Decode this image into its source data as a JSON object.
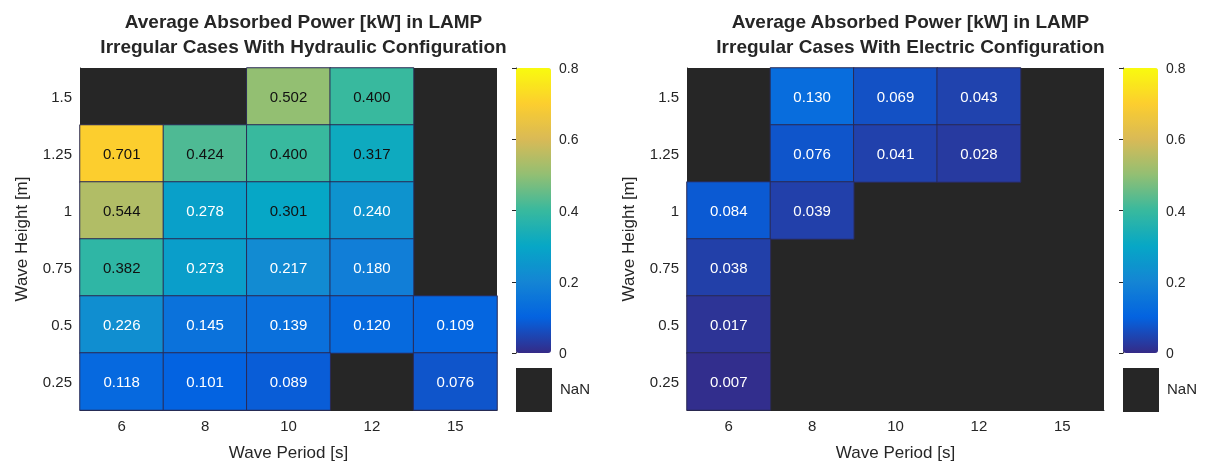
{
  "chart_data": [
    {
      "type": "heatmap",
      "title": "Average Absorbed Power [kW] in LAMP\nIrregular Cases With Hydraulic Configuration",
      "xlabel": "Wave Period [s]",
      "ylabel": "Wave Height [m]",
      "categories": [
        "6",
        "8",
        "10",
        "12",
        "15"
      ],
      "y_categories": [
        "1.5",
        "1.25",
        "1",
        "0.75",
        "0.5",
        "0.25"
      ],
      "cells": [
        [
          null,
          null,
          0.502,
          0.4,
          null
        ],
        [
          0.701,
          0.424,
          0.4,
          0.317,
          null
        ],
        [
          0.544,
          0.278,
          0.301,
          0.24,
          null
        ],
        [
          0.382,
          0.273,
          0.217,
          0.18,
          null
        ],
        [
          0.226,
          0.145,
          0.139,
          0.12,
          0.109
        ],
        [
          0.118,
          0.101,
          0.089,
          null,
          0.076
        ]
      ],
      "cell_labels": [
        [
          null,
          null,
          "0.502",
          "0.400",
          null
        ],
        [
          "0.701",
          "0.424",
          "0.400",
          "0.317",
          null
        ],
        [
          "0.544",
          "0.278",
          "0.301",
          "0.240",
          null
        ],
        [
          "0.382",
          "0.273",
          "0.217",
          "0.180",
          null
        ],
        [
          "0.226",
          "0.145",
          "0.139",
          "0.120",
          "0.109"
        ],
        [
          "0.118",
          "0.101",
          "0.089",
          null,
          "0.076"
        ]
      ],
      "clim": [
        0,
        0.8
      ],
      "cticks": [
        0,
        0.2,
        0.4,
        0.6,
        0.8
      ],
      "annotations": [
        "NaN"
      ]
    },
    {
      "type": "heatmap",
      "title": "Average Absorbed Power [kW] in LAMP\nIrregular Cases With Electric Configuration",
      "xlabel": "Wave Period [s]",
      "ylabel": "Wave Height [m]",
      "categories": [
        "6",
        "8",
        "10",
        "12",
        "15"
      ],
      "y_categories": [
        "1.5",
        "1.25",
        "1",
        "0.75",
        "0.5",
        "0.25"
      ],
      "cells": [
        [
          null,
          0.13,
          0.069,
          0.043,
          null
        ],
        [
          null,
          0.076,
          0.041,
          0.028,
          null
        ],
        [
          0.084,
          0.039,
          null,
          null,
          null
        ],
        [
          0.038,
          null,
          null,
          null,
          null
        ],
        [
          0.017,
          null,
          null,
          null,
          null
        ],
        [
          0.007,
          null,
          null,
          null,
          null
        ]
      ],
      "cell_labels": [
        [
          null,
          "0.130",
          "0.069",
          "0.043",
          null
        ],
        [
          null,
          "0.076",
          "0.041",
          "0.028",
          null
        ],
        [
          "0.084",
          "0.039",
          null,
          null,
          null
        ],
        [
          "0.038",
          null,
          null,
          null,
          null
        ],
        [
          "0.017",
          null,
          null,
          null,
          null
        ],
        [
          "0.007",
          null,
          null,
          null,
          null
        ]
      ],
      "clim": [
        0,
        0.8
      ],
      "cticks": [
        0,
        0.2,
        0.4,
        0.6,
        0.8
      ],
      "annotations": [
        "NaN"
      ]
    }
  ]
}
